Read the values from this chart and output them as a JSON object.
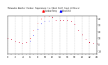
{
  "title": "Milwaukee Weather Outdoor Temperature (vs) Wind Chill (Last 24 Hours)",
  "temp_color": "#ff0000",
  "windchill_color": "#0000ff",
  "background_color": "#ffffff",
  "grid_color": "#888888",
  "ylim": [
    -15,
    45
  ],
  "ytick_values": [
    40,
    30,
    20,
    10,
    0,
    -10
  ],
  "hours": [
    0,
    1,
    2,
    3,
    4,
    5,
    6,
    7,
    8,
    9,
    10,
    11,
    12,
    13,
    14,
    15,
    16,
    17,
    18,
    19,
    20,
    21,
    22,
    23,
    24
  ],
  "temp": [
    10,
    8,
    5,
    3,
    2,
    3,
    10,
    22,
    34,
    40,
    43,
    44,
    42,
    38,
    38,
    38,
    38,
    36,
    32,
    22,
    15,
    8,
    4,
    2,
    1
  ],
  "windchill": [
    10,
    8,
    5,
    3,
    2,
    3,
    6,
    14,
    24,
    33,
    36,
    37,
    42,
    38,
    38,
    38,
    38,
    36,
    32,
    22,
    15,
    8,
    4,
    2,
    1
  ],
  "legend_temp": "Outdoor Temp",
  "legend_wc": "Wind Chill",
  "marker_size": 1.2,
  "vgrid_every": 2
}
